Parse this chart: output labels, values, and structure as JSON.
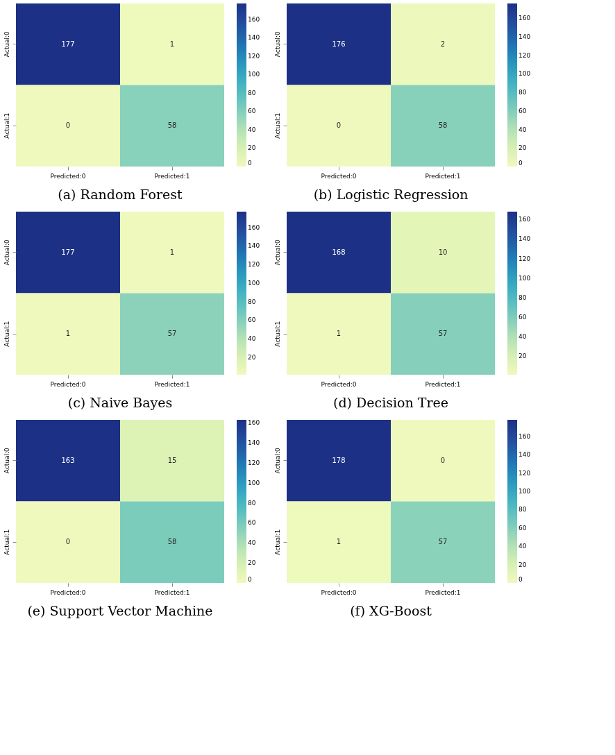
{
  "chart_data": [
    {
      "type": "heatmap",
      "title": "(a)  Random Forest",
      "categories": [
        "Predicted:0",
        "Predicted:1"
      ],
      "y_categories": [
        "Actual:0",
        "Actual:1"
      ],
      "cells": [
        [
          177,
          1
        ],
        [
          0,
          58
        ]
      ],
      "data_labels": true,
      "clim": [
        0,
        177
      ],
      "cticks": [
        0,
        20,
        40,
        60,
        80,
        100,
        120,
        140,
        160
      ]
    },
    {
      "type": "heatmap",
      "title": "(b)  Logistic Regression",
      "categories": [
        "Predicted:0",
        "Predicted:1"
      ],
      "y_categories": [
        "Actual:0",
        "Actual:1"
      ],
      "cells": [
        [
          176,
          2
        ],
        [
          0,
          58
        ]
      ],
      "data_labels": true,
      "clim": [
        0,
        176
      ],
      "cticks": [
        0,
        20,
        40,
        60,
        80,
        100,
        120,
        140,
        160
      ]
    },
    {
      "type": "heatmap",
      "title": "(c)  Naive Bayes",
      "categories": [
        "Predicted:0",
        "Predicted:1"
      ],
      "y_categories": [
        "Actual:0",
        "Actual:1"
      ],
      "cells": [
        [
          177,
          1
        ],
        [
          1,
          57
        ]
      ],
      "data_labels": true,
      "clim": [
        1,
        177
      ],
      "cticks": [
        20,
        40,
        60,
        80,
        100,
        120,
        140,
        160
      ]
    },
    {
      "type": "heatmap",
      "title": "(d)  Decision Tree",
      "categories": [
        "Predicted:0",
        "Predicted:1"
      ],
      "y_categories": [
        "Actual:0",
        "Actual:1"
      ],
      "cells": [
        [
          168,
          10
        ],
        [
          1,
          57
        ]
      ],
      "data_labels": true,
      "clim": [
        1,
        168
      ],
      "cticks": [
        20,
        40,
        60,
        80,
        100,
        120,
        140,
        160
      ]
    },
    {
      "type": "heatmap",
      "title": "(e)  Support Vector Machine",
      "categories": [
        "Predicted:0",
        "Predicted:1"
      ],
      "y_categories": [
        "Actual:0",
        "Actual:1"
      ],
      "cells": [
        [
          163,
          15
        ],
        [
          0,
          58
        ]
      ],
      "data_labels": true,
      "clim": [
        0,
        163
      ],
      "cticks": [
        0,
        20,
        40,
        60,
        80,
        100,
        120,
        140,
        160
      ]
    },
    {
      "type": "heatmap",
      "title": "(f)  XG-Boost",
      "categories": [
        "Predicted:0",
        "Predicted:1"
      ],
      "y_categories": [
        "Actual:0",
        "Actual:1"
      ],
      "cells": [
        [
          178,
          0
        ],
        [
          1,
          57
        ]
      ],
      "data_labels": true,
      "clim": [
        0,
        178
      ],
      "cticks": [
        0,
        20,
        40,
        60,
        80,
        100,
        120,
        140,
        160
      ]
    }
  ]
}
